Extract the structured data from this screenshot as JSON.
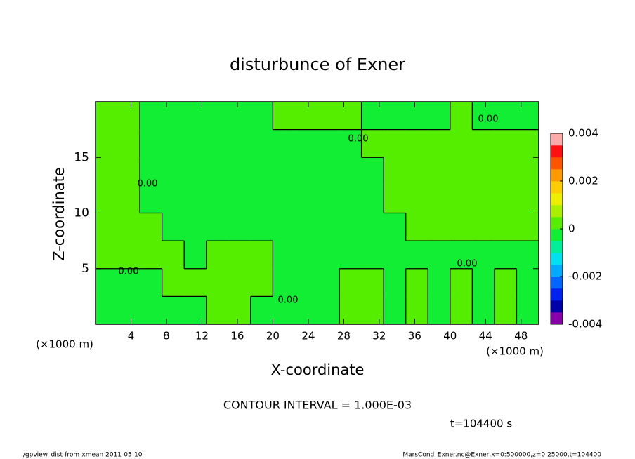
{
  "chart_data": {
    "type": "contour",
    "title": "disturbunce of Exner",
    "x_label": "X-coordinate",
    "y_label": "Z-coordinate",
    "x_unit": "(×1000 m)",
    "xlim": [
      0,
      50
    ],
    "xticks": [
      4,
      8,
      12,
      16,
      20,
      24,
      28,
      32,
      36,
      40,
      44,
      48
    ],
    "ylim": [
      0,
      20
    ],
    "yticks": [
      5,
      10,
      15
    ],
    "z": [
      [
        -0.0002,
        -0.0002,
        -0.0002,
        -0.0002,
        -0.0002,
        0.0002,
        0.0002,
        -0.0002,
        -0.0002,
        -0.0002,
        -0.0002,
        0.0002,
        0.0002,
        -0.0002,
        0.0002,
        -0.0002,
        0.0002,
        -0.0002,
        0.0002,
        -0.0002
      ],
      [
        -0.0002,
        -0.0002,
        -0.0002,
        0.0002,
        0.0002,
        0.0002,
        0.0002,
        0.0002,
        -0.0002,
        -0.0002,
        -0.0002,
        0.0002,
        0.0002,
        -0.0002,
        0.0002,
        -0.0002,
        0.0002,
        -0.0002,
        0.0002,
        -0.0002
      ],
      [
        0.0002,
        0.0002,
        0.0002,
        0.0002,
        -0.0002,
        0.0002,
        0.0002,
        0.0002,
        -0.0002,
        -0.0002,
        -0.0002,
        -0.0002,
        -0.0002,
        -0.0002,
        -0.0002,
        -0.0002,
        -0.0002,
        -0.0002,
        -0.0002,
        -0.0002
      ],
      [
        0.0002,
        0.0002,
        0.0002,
        -0.0002,
        -0.0002,
        -0.0002,
        -0.0002,
        -0.0002,
        -0.0002,
        -0.0002,
        -0.0002,
        -0.0002,
        -0.0002,
        -0.0002,
        0.0002,
        0.0002,
        0.0002,
        0.0002,
        0.0002,
        0.0002
      ],
      [
        0.0002,
        0.0002,
        -0.0002,
        -0.0002,
        -0.0002,
        -0.0002,
        -0.0002,
        -0.0002,
        -0.0002,
        -0.0002,
        -0.0002,
        -0.0002,
        -0.0002,
        0.0002,
        0.0002,
        0.0002,
        0.0002,
        0.0002,
        0.0002,
        0.0002
      ],
      [
        0.0002,
        0.0002,
        -0.0002,
        -0.0002,
        -0.0002,
        -0.0002,
        -0.0002,
        -0.0002,
        -0.0002,
        -0.0002,
        -0.0002,
        -0.0002,
        -0.0002,
        0.0002,
        0.0002,
        0.0002,
        0.0002,
        0.0002,
        0.0002,
        0.0002
      ],
      [
        0.0002,
        0.0002,
        -0.0002,
        -0.0002,
        -0.0002,
        -0.0002,
        -0.0002,
        -0.0002,
        -0.0002,
        -0.0002,
        -0.0002,
        -0.0002,
        0.0002,
        0.0002,
        0.0002,
        0.0002,
        0.0002,
        0.0002,
        0.0002,
        0.0002
      ],
      [
        0.0002,
        0.0002,
        -0.0002,
        -0.0002,
        -0.0002,
        -0.0002,
        -0.0002,
        -0.0002,
        0.0002,
        0.0002,
        0.0002,
        0.0002,
        -0.0002,
        -0.0002,
        -0.0002,
        -0.0002,
        0.0002,
        -0.0002,
        -0.0002,
        -0.0002
      ]
    ],
    "clim": [
      -0.004,
      0.004
    ],
    "cticks": [
      0.004,
      0.002,
      0,
      -0.002,
      -0.004
    ],
    "levels": [
      -0.004,
      -0.0035,
      -0.003,
      -0.0025,
      -0.002,
      -0.0015,
      -0.001,
      -0.0005,
      0,
      0.0005,
      0.001,
      0.0015,
      0.002,
      0.0025,
      0.003,
      0.0035,
      0.004
    ],
    "colors": [
      "#8800aa",
      "#0000aa",
      "#0022ee",
      "#0066ff",
      "#00aaff",
      "#00e0f0",
      "#00ee99",
      "#11ee33",
      "#55ee00",
      "#aaee00",
      "#eeee00",
      "#ffcc00",
      "#ff9900",
      "#ff5500",
      "#ff1111",
      "#ffaaaa"
    ],
    "contour_labels": [
      "0.00",
      "0.00",
      "0.00",
      "0.00",
      "0.00",
      "0.00"
    ],
    "contour_interval": "CONTOUR INTERVAL = 1.000E-03",
    "time": "t=104400 s",
    "footer_left": "./gpview_dist-from-xmean  2011-05-10",
    "footer_right": "MarsCond_Exner.nc@Exner,x=0:500000,z=0:25000,t=104400"
  }
}
